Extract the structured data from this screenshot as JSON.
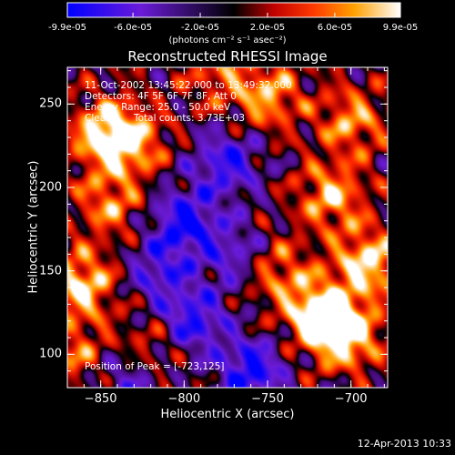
{
  "chart_data": {
    "type": "heatmap",
    "title": "Reconstructed RHESSI Image",
    "colorbar": {
      "tick_labels": [
        "-9.9e-05",
        "-6.0e-05",
        "-2.0e-05",
        "2.0e-05",
        "6.0e-05",
        "9.9e-05"
      ],
      "tick_values": [
        -9.9e-05,
        -6e-05,
        -2e-05,
        2e-05,
        6e-05,
        9.9e-05
      ],
      "range": [
        -9.9e-05,
        9.9e-05
      ],
      "unit_label": "(photons cm⁻² s⁻¹ asec⁻²)",
      "colormap": [
        "#0000ff",
        "#8a2be2",
        "#000000",
        "#ff0000",
        "#ffa500",
        "#ffffff"
      ]
    },
    "xlabel": "Heliocentric X (arcsec)",
    "ylabel": "Heliocentric Y (arcsec)",
    "xlim": [
      -870,
      -678
    ],
    "ylim": [
      80,
      272
    ],
    "xticks": [
      -850,
      -800,
      -750,
      -700
    ],
    "yticks": [
      100,
      150,
      200,
      250
    ],
    "annotations": {
      "time": "11-Oct-2002 13:45:22.000 to 13:49:32.000",
      "detectors": "Detectors: 4F 5F 6F 7F 8F, Att 0",
      "energy": "Energy Range: 25.0 - 50.0 keV",
      "clean_label": "Clean",
      "counts": "Total counts: 3.73E+03",
      "peak": "Position of Peak = [-723,125]"
    },
    "peak": {
      "x": -723,
      "y": 125
    },
    "hot_regions": [
      {
        "x": -862,
        "y": 142,
        "v": 0.9
      },
      {
        "x": -848,
        "y": 232,
        "v": 0.85
      },
      {
        "x": -832,
        "y": 228,
        "v": 0.7
      },
      {
        "x": -845,
        "y": 190,
        "v": 0.6
      },
      {
        "x": -720,
        "y": 125,
        "v": 1.0
      },
      {
        "x": -703,
        "y": 112,
        "v": 1.0
      },
      {
        "x": -690,
        "y": 155,
        "v": 0.9
      },
      {
        "x": -712,
        "y": 195,
        "v": 0.75
      },
      {
        "x": -745,
        "y": 150,
        "v": 0.55
      },
      {
        "x": -750,
        "y": 255,
        "v": 0.7
      },
      {
        "x": -700,
        "y": 240,
        "v": 0.65
      },
      {
        "x": -780,
        "y": 268,
        "v": 0.45
      },
      {
        "x": -865,
        "y": 100,
        "v": 0.5
      },
      {
        "x": -820,
        "y": 105,
        "v": 0.4
      }
    ],
    "cold_regions": [
      {
        "x": -800,
        "y": 180,
        "v": -0.85
      },
      {
        "x": -795,
        "y": 120,
        "v": -0.8
      },
      {
        "x": -775,
        "y": 215,
        "v": -0.75
      },
      {
        "x": -760,
        "y": 90,
        "v": -0.9
      },
      {
        "x": -815,
        "y": 150,
        "v": -0.6
      },
      {
        "x": -835,
        "y": 85,
        "v": -0.5
      },
      {
        "x": -770,
        "y": 160,
        "v": -0.55
      }
    ]
  },
  "timestamp": "12-Apr-2013 10:33"
}
